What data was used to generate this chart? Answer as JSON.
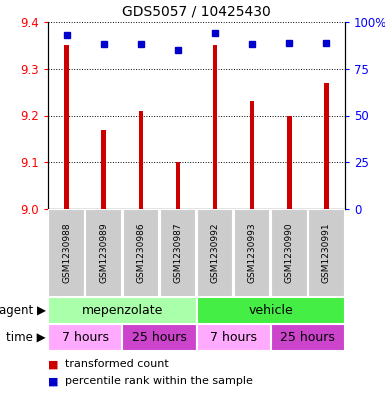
{
  "title": "GDS5057 / 10425430",
  "samples": [
    "GSM1230988",
    "GSM1230989",
    "GSM1230986",
    "GSM1230987",
    "GSM1230992",
    "GSM1230993",
    "GSM1230990",
    "GSM1230991"
  ],
  "transformed_counts": [
    9.35,
    9.17,
    9.21,
    9.1,
    9.35,
    9.23,
    9.2,
    9.27
  ],
  "percentile_ranks": [
    93,
    88,
    88,
    85,
    94,
    88,
    89,
    89
  ],
  "y_min": 9.0,
  "y_max": 9.4,
  "y_ticks": [
    9.0,
    9.1,
    9.2,
    9.3,
    9.4
  ],
  "y2_ticks": [
    0,
    25,
    50,
    75,
    100
  ],
  "bar_color": "#cc0000",
  "dot_color": "#0000cc",
  "agent_row": [
    {
      "label": "mepenzolate",
      "start": 0,
      "end": 4,
      "color": "#aaffaa"
    },
    {
      "label": "vehicle",
      "start": 4,
      "end": 8,
      "color": "#44ee44"
    }
  ],
  "time_row": [
    {
      "label": "7 hours",
      "start": 0,
      "end": 2,
      "color": "#ffaaff"
    },
    {
      "label": "25 hours",
      "start": 2,
      "end": 4,
      "color": "#cc44cc"
    },
    {
      "label": "7 hours",
      "start": 4,
      "end": 6,
      "color": "#ffaaff"
    },
    {
      "label": "25 hours",
      "start": 6,
      "end": 8,
      "color": "#cc44cc"
    }
  ],
  "sample_bg_color": "#cccccc",
  "legend_red_label": "transformed count",
  "legend_blue_label": "percentile rank within the sample",
  "agent_label": "agent",
  "time_label": "time",
  "bar_width": 0.12
}
